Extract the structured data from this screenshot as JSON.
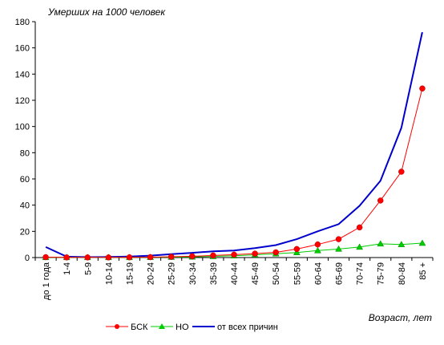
{
  "chart_data": {
    "type": "line",
    "ylabel": "Умерших на 1000 человек",
    "xlabel": "Возраст, лет",
    "categories": [
      "до 1 года",
      "1-4",
      "5-9",
      "10-14",
      "15-19",
      "20-24",
      "25-29",
      "30-34",
      "35-39",
      "40-44",
      "45-49",
      "50-54",
      "55-59",
      "60-64",
      "65-69",
      "70-74",
      "75-79",
      "80-84",
      "85 +"
    ],
    "ylim": [
      0,
      180
    ],
    "yticks": [
      0,
      20,
      40,
      60,
      80,
      100,
      120,
      140,
      160,
      180
    ],
    "grid": false,
    "legend_position": "bottom",
    "series": [
      {
        "name": "БСК",
        "color": "#ff0000",
        "marker": "circle",
        "marker_color": "#ff0000",
        "values": [
          0.3,
          0.1,
          0.1,
          0.1,
          0.2,
          0.3,
          0.6,
          1.0,
          1.6,
          2.2,
          3.0,
          4.0,
          6.5,
          10.0,
          14.0,
          23.0,
          43.5,
          65.5,
          129.0
        ]
      },
      {
        "name": "НО",
        "color": "#00cc00",
        "marker": "triangle",
        "marker_color": "#00cc00",
        "values": [
          0.1,
          0.1,
          0.1,
          0.1,
          0.1,
          0.2,
          0.3,
          0.5,
          0.9,
          1.4,
          2.1,
          2.9,
          3.8,
          5.3,
          6.5,
          8.0,
          10.5,
          10.0,
          11.0
        ]
      },
      {
        "name": "от всех причин",
        "color": "#0000cc",
        "marker": "none",
        "values": [
          8.0,
          0.7,
          0.3,
          0.4,
          0.8,
          1.5,
          2.6,
          3.6,
          4.7,
          5.3,
          7.2,
          9.5,
          14.0,
          20.0,
          25.5,
          39.5,
          58.5,
          99.0,
          172.0
        ]
      }
    ]
  }
}
